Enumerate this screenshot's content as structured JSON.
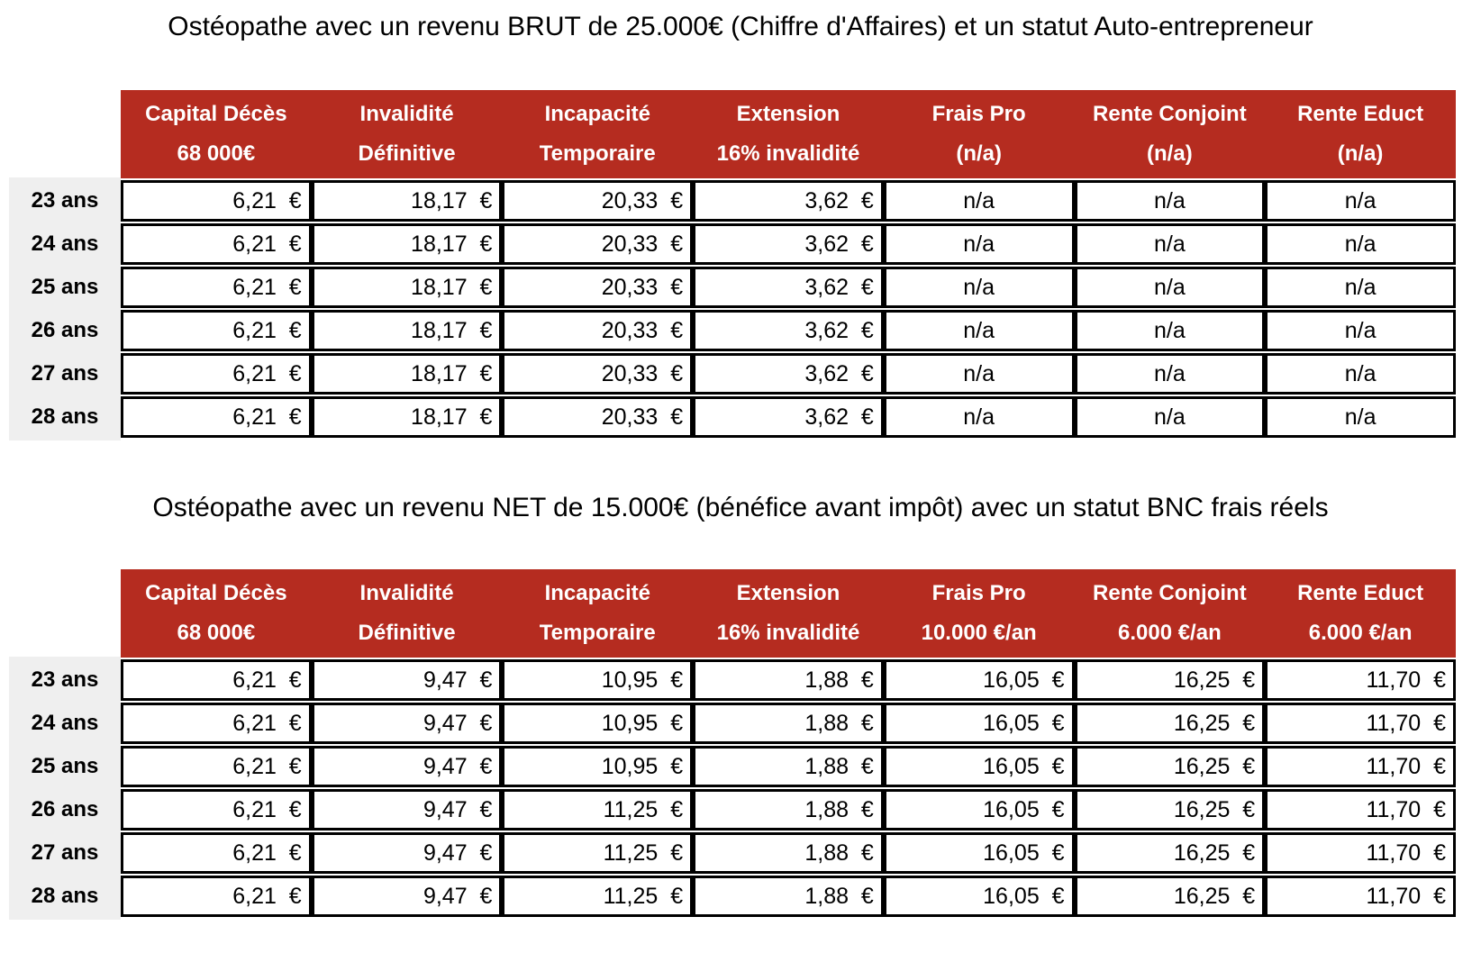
{
  "colors": {
    "header-bg": "#B52C20",
    "header-text": "#FFFFFF",
    "row-label-bg": "#EFEFEF",
    "border": "#000000",
    "cell-bg": "#FFFFFF",
    "text": "#000000",
    "page-bg": "#FFFFFF"
  },
  "sections": [
    {
      "title": "Ostéopathe avec un revenu BRUT de 25.000€ (Chiffre d'Affaires) et un statut Auto-entrepreneur",
      "table": {
        "columns": [
          {
            "line1": "Capital Décès",
            "line2": "68 000€"
          },
          {
            "line1": "Invalidité",
            "line2": "Définitive"
          },
          {
            "line1": "Incapacité",
            "line2": "Temporaire"
          },
          {
            "line1": "Extension",
            "line2": "16% invalidité"
          },
          {
            "line1": "Frais Pro",
            "line2": "(n/a)"
          },
          {
            "line1": "Rente Conjoint",
            "line2": "(n/a)"
          },
          {
            "line1": "Rente Educt",
            "line2": "(n/a)"
          }
        ],
        "rows": [
          {
            "label": "23 ans",
            "values": [
              "6,21  €",
              "18,17  €",
              "20,33  €",
              "3,62  €",
              "n/a",
              "n/a",
              "n/a"
            ]
          },
          {
            "label": "24 ans",
            "values": [
              "6,21  €",
              "18,17  €",
              "20,33  €",
              "3,62  €",
              "n/a",
              "n/a",
              "n/a"
            ]
          },
          {
            "label": "25 ans",
            "values": [
              "6,21  €",
              "18,17  €",
              "20,33  €",
              "3,62  €",
              "n/a",
              "n/a",
              "n/a"
            ]
          },
          {
            "label": "26 ans",
            "values": [
              "6,21  €",
              "18,17  €",
              "20,33  €",
              "3,62  €",
              "n/a",
              "n/a",
              "n/a"
            ]
          },
          {
            "label": "27 ans",
            "values": [
              "6,21  €",
              "18,17  €",
              "20,33  €",
              "3,62  €",
              "n/a",
              "n/a",
              "n/a"
            ]
          },
          {
            "label": "28 ans",
            "values": [
              "6,21  €",
              "18,17  €",
              "20,33  €",
              "3,62  €",
              "n/a",
              "n/a",
              "n/a"
            ]
          }
        ]
      }
    },
    {
      "title": "Ostéopathe avec un revenu NET de 15.000€ (bénéfice avant impôt) avec un statut BNC frais réels",
      "table": {
        "columns": [
          {
            "line1": "Capital Décès",
            "line2": "68 000€"
          },
          {
            "line1": "Invalidité",
            "line2": "Définitive"
          },
          {
            "line1": "Incapacité",
            "line2": "Temporaire"
          },
          {
            "line1": "Extension",
            "line2": "16% invalidité"
          },
          {
            "line1": "Frais Pro",
            "line2": "10.000 €/an"
          },
          {
            "line1": "Rente Conjoint",
            "line2": "6.000 €/an"
          },
          {
            "line1": "Rente Educt",
            "line2": "6.000 €/an"
          }
        ],
        "rows": [
          {
            "label": "23 ans",
            "values": [
              "6,21  €",
              "9,47  €",
              "10,95  €",
              "1,88  €",
              "16,05  €",
              "16,25  €",
              "11,70  €"
            ]
          },
          {
            "label": "24 ans",
            "values": [
              "6,21  €",
              "9,47  €",
              "10,95  €",
              "1,88  €",
              "16,05  €",
              "16,25  €",
              "11,70  €"
            ]
          },
          {
            "label": "25 ans",
            "values": [
              "6,21  €",
              "9,47  €",
              "10,95  €",
              "1,88  €",
              "16,05  €",
              "16,25  €",
              "11,70  €"
            ]
          },
          {
            "label": "26 ans",
            "values": [
              "6,21  €",
              "9,47  €",
              "11,25  €",
              "1,88  €",
              "16,05  €",
              "16,25  €",
              "11,70  €"
            ]
          },
          {
            "label": "27 ans",
            "values": [
              "6,21  €",
              "9,47  €",
              "11,25  €",
              "1,88  €",
              "16,05  €",
              "16,25  €",
              "11,70  €"
            ]
          },
          {
            "label": "28 ans",
            "values": [
              "6,21  €",
              "9,47  €",
              "11,25  €",
              "1,88  €",
              "16,05  €",
              "16,25  €",
              "11,70  €"
            ]
          }
        ]
      }
    }
  ]
}
